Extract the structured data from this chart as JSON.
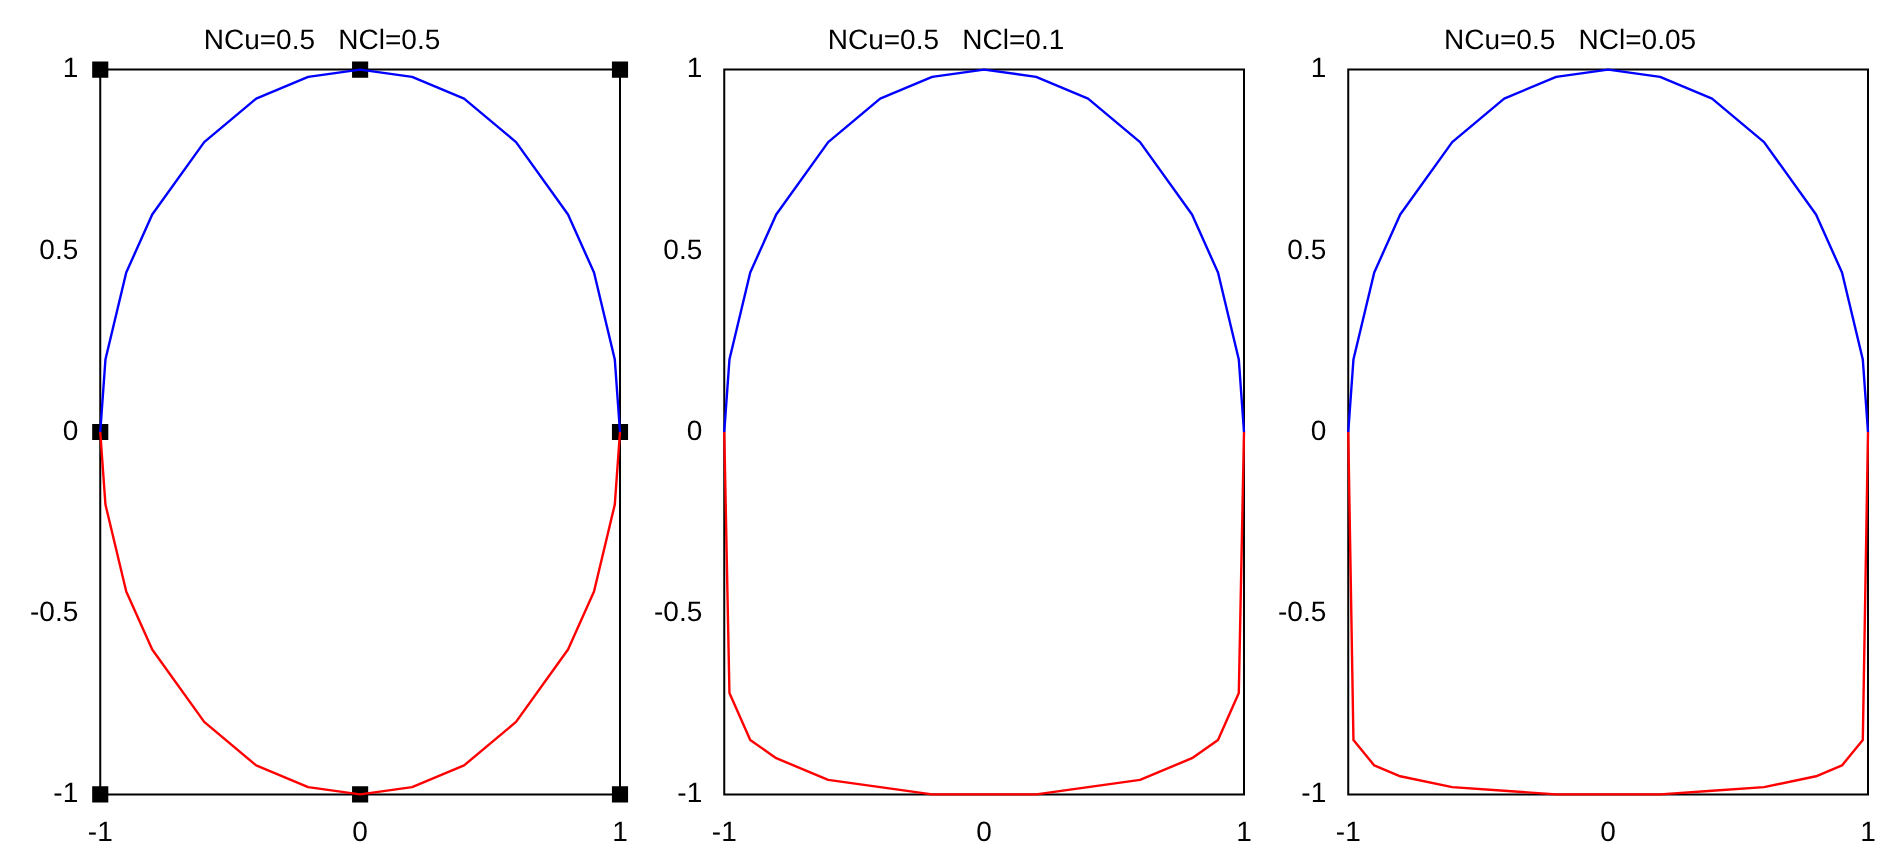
{
  "chart_data": [
    {
      "type": "line",
      "title": "NCu=0.5   NCl=0.5",
      "xlim": [
        -1,
        1
      ],
      "ylim": [
        -1,
        1
      ],
      "xticks": [
        -1,
        0,
        1
      ],
      "yticks": [
        -1,
        -0.5,
        0,
        0.5,
        1
      ],
      "grid": false,
      "legend": false,
      "series": [
        {
          "color": "#0000ff",
          "x": [
            -1,
            -0.98,
            -0.9,
            -0.8,
            -0.6,
            -0.4,
            -0.2,
            0,
            0.2,
            0.4,
            0.6,
            0.8,
            0.9,
            0.98,
            1
          ],
          "values": [
            0,
            0.2,
            0.44,
            0.6,
            0.8,
            0.92,
            0.98,
            1,
            0.98,
            0.92,
            0.8,
            0.6,
            0.44,
            0.2,
            0
          ]
        },
        {
          "color": "#ff0000",
          "x": [
            -1,
            -0.98,
            -0.9,
            -0.8,
            -0.6,
            -0.4,
            -0.2,
            0,
            0.2,
            0.4,
            0.6,
            0.8,
            0.9,
            0.98,
            1
          ],
          "values": [
            0,
            -0.2,
            -0.44,
            -0.6,
            -0.8,
            -0.92,
            -0.98,
            -1,
            -0.98,
            -0.92,
            -0.8,
            -0.6,
            -0.44,
            -0.2,
            0
          ]
        },
        {
          "type": "scatter",
          "marker": "square",
          "color": "#000000",
          "x": [
            -1,
            0,
            1,
            -1,
            1,
            -1,
            0,
            1
          ],
          "values": [
            1,
            1,
            1,
            0,
            0,
            -1,
            -1,
            -1
          ]
        }
      ]
    },
    {
      "type": "line",
      "title": "NCu=0.5   NCl=0.1",
      "xlim": [
        -1,
        1
      ],
      "ylim": [
        -1,
        1
      ],
      "xticks": [
        -1,
        0,
        1
      ],
      "yticks": [
        -1,
        -0.5,
        0,
        0.5,
        1
      ],
      "grid": false,
      "legend": false,
      "series": [
        {
          "color": "#0000ff",
          "x": [
            -1,
            -0.98,
            -0.9,
            -0.8,
            -0.6,
            -0.4,
            -0.2,
            0,
            0.2,
            0.4,
            0.6,
            0.8,
            0.9,
            0.98,
            1
          ],
          "values": [
            0,
            0.2,
            0.44,
            0.6,
            0.8,
            0.92,
            0.98,
            1,
            0.98,
            0.92,
            0.8,
            0.6,
            0.44,
            0.2,
            0
          ]
        },
        {
          "color": "#ff0000",
          "x": [
            -1,
            -0.98,
            -0.9,
            -0.8,
            -0.6,
            -0.4,
            -0.2,
            0,
            0.2,
            0.4,
            0.6,
            0.8,
            0.9,
            0.98,
            1
          ],
          "values": [
            0,
            -0.72,
            -0.85,
            -0.9,
            -0.96,
            -0.98,
            -1,
            -1,
            -1,
            -0.98,
            -0.96,
            -0.9,
            -0.85,
            -0.72,
            0
          ]
        }
      ]
    },
    {
      "type": "line",
      "title": "NCu=0.5   NCl=0.05",
      "xlim": [
        -1,
        1
      ],
      "ylim": [
        -1,
        1
      ],
      "xticks": [
        -1,
        0,
        1
      ],
      "yticks": [
        -1,
        -0.5,
        0,
        0.5,
        1
      ],
      "grid": false,
      "legend": false,
      "series": [
        {
          "color": "#0000ff",
          "x": [
            -1,
            -0.98,
            -0.9,
            -0.8,
            -0.6,
            -0.4,
            -0.2,
            0,
            0.2,
            0.4,
            0.6,
            0.8,
            0.9,
            0.98,
            1
          ],
          "values": [
            0,
            0.2,
            0.44,
            0.6,
            0.8,
            0.92,
            0.98,
            1,
            0.98,
            0.92,
            0.8,
            0.6,
            0.44,
            0.2,
            0
          ]
        },
        {
          "color": "#ff0000",
          "x": [
            -1,
            -0.98,
            -0.9,
            -0.8,
            -0.6,
            -0.4,
            -0.2,
            0,
            0.2,
            0.4,
            0.6,
            0.8,
            0.9,
            0.98,
            1
          ],
          "values": [
            0,
            -0.85,
            -0.92,
            -0.95,
            -0.98,
            -0.99,
            -1,
            -1,
            -1,
            -0.99,
            -0.98,
            -0.95,
            -0.92,
            -0.85,
            0
          ]
        }
      ]
    }
  ]
}
